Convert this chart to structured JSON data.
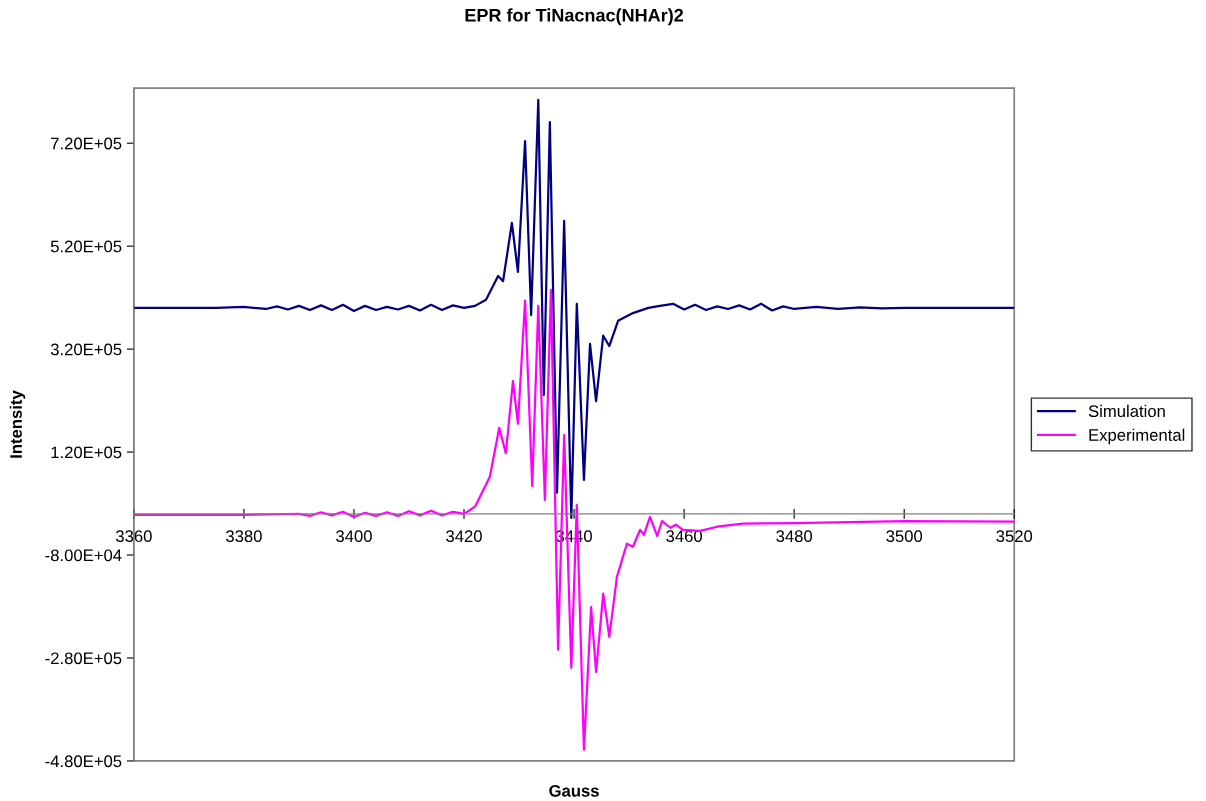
{
  "chart_data": {
    "type": "line",
    "title": "EPR for TiNacnac(NHAr)2",
    "xlabel": "Gauss",
    "ylabel": "Intensity",
    "xlim": [
      3360,
      3520
    ],
    "xticks": [
      3360,
      3380,
      3400,
      3420,
      3440,
      3460,
      3480,
      3500,
      3520
    ],
    "ylim": [
      -480000,
      827000
    ],
    "yticks": [
      {
        "value": -480000,
        "label": "-4.80E+05"
      },
      {
        "value": -280000,
        "label": "-2.80E+05"
      },
      {
        "value": -80000,
        "label": "-8.00E+04"
      },
      {
        "value": 120000,
        "label": "1.20E+05"
      },
      {
        "value": 320000,
        "label": "3.20E+05"
      },
      {
        "value": 520000,
        "label": "5.20E+05"
      },
      {
        "value": 720000,
        "label": "7.20E+05"
      }
    ],
    "grid": false,
    "legend": "right",
    "marker": "none",
    "line_style": "solid",
    "series": [
      {
        "name": "Simulation",
        "color": "#000080",
        "x": [
          3360,
          3375,
          3380,
          3384,
          3386,
          3388,
          3390,
          3392,
          3394,
          3396,
          3398,
          3400,
          3402,
          3404,
          3406,
          3408,
          3410,
          3412,
          3414,
          3416,
          3418,
          3420,
          3422,
          3424,
          3426.2,
          3427.1,
          3428.7,
          3429.8,
          3431.1,
          3432.2,
          3433.5,
          3434.5,
          3435.6,
          3436.9,
          3438.2,
          3439.5,
          3440.5,
          3441.8,
          3442.9,
          3444.0,
          3445.3,
          3446.4,
          3448.0,
          3450.7,
          3453.5,
          3455.6,
          3458,
          3460,
          3462,
          3464,
          3466,
          3468,
          3470,
          3472,
          3474,
          3476,
          3478,
          3480,
          3484,
          3488,
          3492,
          3496,
          3500,
          3520
        ],
        "values": [
          400000,
          400000,
          402000,
          398000,
          403000,
          397000,
          404000,
          396000,
          405000,
          396000,
          406000,
          394000,
          404000,
          396000,
          402000,
          397000,
          404000,
          395000,
          406000,
          396000,
          405000,
          400000,
          404000,
          416000,
          462000,
          452000,
          565000,
          470000,
          724000,
          386000,
          804000,
          231000,
          761000,
          41000,
          569000,
          -8000,
          408000,
          66000,
          330000,
          219000,
          346000,
          326000,
          375000,
          390000,
          400000,
          404000,
          408000,
          397000,
          406000,
          396000,
          403000,
          398000,
          405000,
          397000,
          408000,
          395000,
          403000,
          398000,
          402000,
          398000,
          401000,
          399000,
          400000,
          400000
        ]
      },
      {
        "name": "Experimental",
        "color": "#ff00ff",
        "x": [
          3360,
          3380,
          3390,
          3392,
          3394,
          3396,
          3398,
          3400,
          3402,
          3404,
          3406,
          3408,
          3410,
          3412,
          3414,
          3416,
          3418,
          3420,
          3422.0,
          3424.7,
          3426.4,
          3427.6,
          3428.9,
          3429.8,
          3431.1,
          3432.4,
          3433.5,
          3434.7,
          3435.8,
          3437.1,
          3438.2,
          3439.5,
          3440.5,
          3441.8,
          3443.1,
          3444.0,
          3445.3,
          3446.4,
          3447.8,
          3449.6,
          3450.7,
          3452.0,
          3452.7,
          3453.8,
          3455.1,
          3456.0,
          3457.5,
          3458.5,
          3459.8,
          3462.9,
          3466,
          3470.7,
          3480,
          3490,
          3500,
          3520
        ],
        "values": [
          -2000,
          -2000,
          0,
          -4000,
          3000,
          -3000,
          4000,
          -6000,
          2000,
          -4000,
          3000,
          -4000,
          5000,
          -3000,
          6000,
          -3000,
          4000,
          0,
          14000,
          72000,
          167000,
          118000,
          258000,
          175000,
          414000,
          54000,
          404000,
          27000,
          435000,
          -264000,
          153000,
          -299000,
          17000,
          -458000,
          -181000,
          -307000,
          -155000,
          -239000,
          -122000,
          -58000,
          -64000,
          -31000,
          -41000,
          -6000,
          -43000,
          -14000,
          -27000,
          -21000,
          -31000,
          -33000,
          -25000,
          -19000,
          -18000,
          -16000,
          -14000,
          -15000
        ]
      }
    ]
  }
}
